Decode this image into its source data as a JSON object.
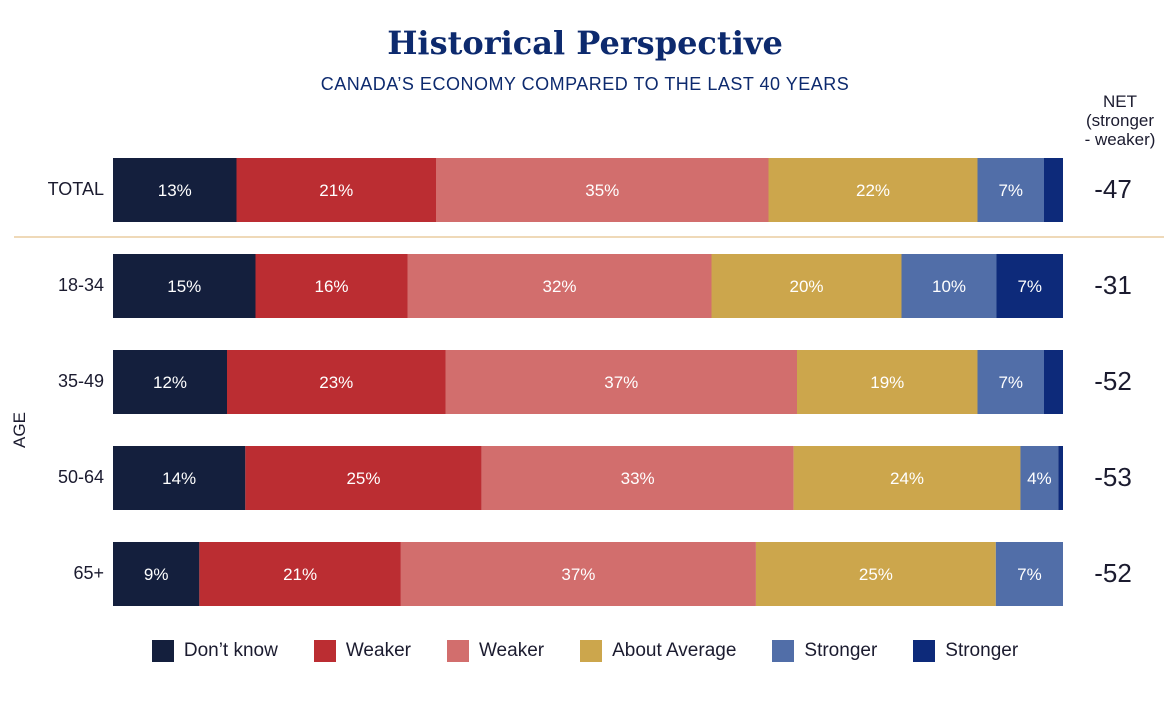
{
  "chart_data": {
    "type": "bar",
    "orientation": "horizontal",
    "stacked": true,
    "title": "Historical Perspective",
    "subtitle": "CANADA’S ECONOMY COMPARED TO THE LAST 40 YEARS",
    "group_label": "AGE",
    "net_header_lines": [
      "NET",
      "(stronger",
      "- weaker)"
    ],
    "categories": [
      "TOTAL",
      "18-34",
      "35-49",
      "50-64",
      "65+"
    ],
    "series": [
      {
        "name": "Don’t know",
        "color": "#141f3d",
        "values": [
          13,
          15,
          12,
          14,
          9
        ],
        "labels": [
          "13%",
          "15%",
          "12%",
          "14%",
          "9%"
        ]
      },
      {
        "name": "Weaker",
        "color": "#bb2d32",
        "values": [
          21,
          16,
          23,
          25,
          21
        ],
        "labels": [
          "21%",
          "16%",
          "23%",
          "25%",
          "21%"
        ]
      },
      {
        "name": "Weaker",
        "color": "#d26e6d",
        "values": [
          35,
          32,
          37,
          33,
          37
        ],
        "labels": [
          "35%",
          "32%",
          "37%",
          "33%",
          "37%"
        ]
      },
      {
        "name": "About Average",
        "color": "#cca64c",
        "values": [
          22,
          20,
          19,
          24,
          25
        ],
        "labels": [
          "22%",
          "20%",
          "19%",
          "24%",
          "25%"
        ]
      },
      {
        "name": "Stronger",
        "color": "#516ea8",
        "values": [
          7,
          10,
          7,
          4,
          7
        ],
        "labels": [
          "7%",
          "10%",
          "7%",
          "4%",
          "7%"
        ]
      },
      {
        "name": "Stronger",
        "color": "#0d2a7a",
        "values": [
          2,
          7,
          2,
          0.5,
          0
        ],
        "labels": [
          "",
          "7%",
          "",
          "",
          ""
        ]
      }
    ],
    "net": [
      "-47",
      "-31",
      "-52",
      "-53",
      "-52"
    ],
    "xlim": [
      0,
      100
    ],
    "legend_position": "bottom",
    "grid": false
  }
}
